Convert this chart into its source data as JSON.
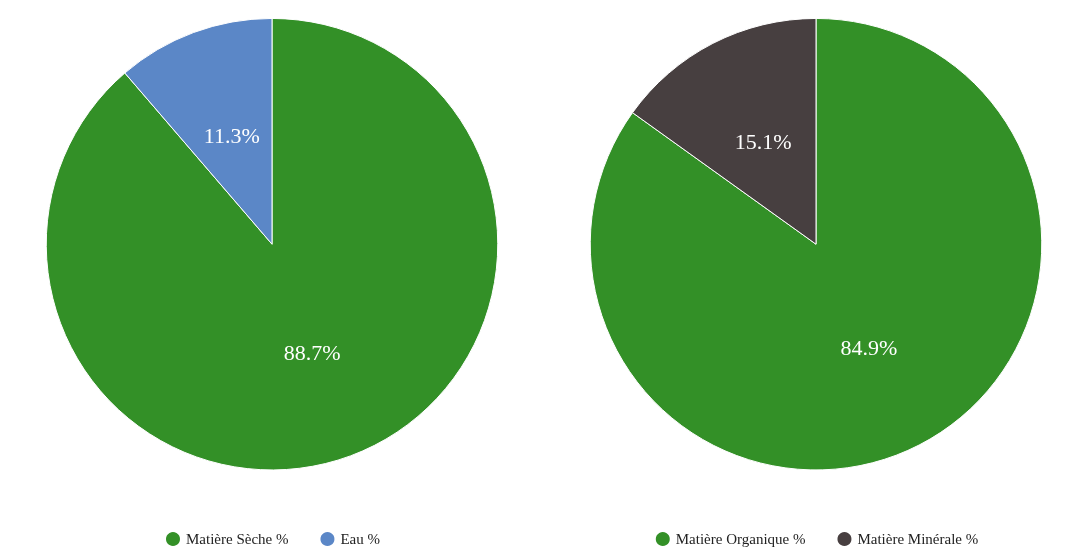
{
  "chart_data": [
    {
      "type": "pie",
      "categories": [
        "Matière Sèche %",
        "Eau %"
      ],
      "values": [
        88.7,
        11.3
      ],
      "colors": [
        "#339027",
        "#5b87c7"
      ],
      "value_labels": [
        "88.7%",
        "11.3%"
      ],
      "legend": "bottom"
    },
    {
      "type": "pie",
      "categories": [
        "Matière Organique %",
        "Matière Minérale %"
      ],
      "values": [
        84.9,
        15.1
      ],
      "colors": [
        "#339027",
        "#473f40"
      ],
      "value_labels": [
        "84.9%",
        "15.1%"
      ],
      "legend": "bottom"
    }
  ]
}
